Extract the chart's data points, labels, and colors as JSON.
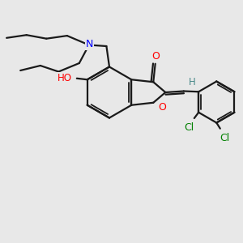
{
  "bg_color": "#e8e8e8",
  "bond_color": "#1a1a1a",
  "atom_colors": {
    "O": "#ff0000",
    "N": "#0000ff",
    "Cl": "#008000",
    "H": "#4a8a8a",
    "C": "#1a1a1a"
  },
  "figsize": [
    3.0,
    3.0
  ],
  "dpi": 100
}
